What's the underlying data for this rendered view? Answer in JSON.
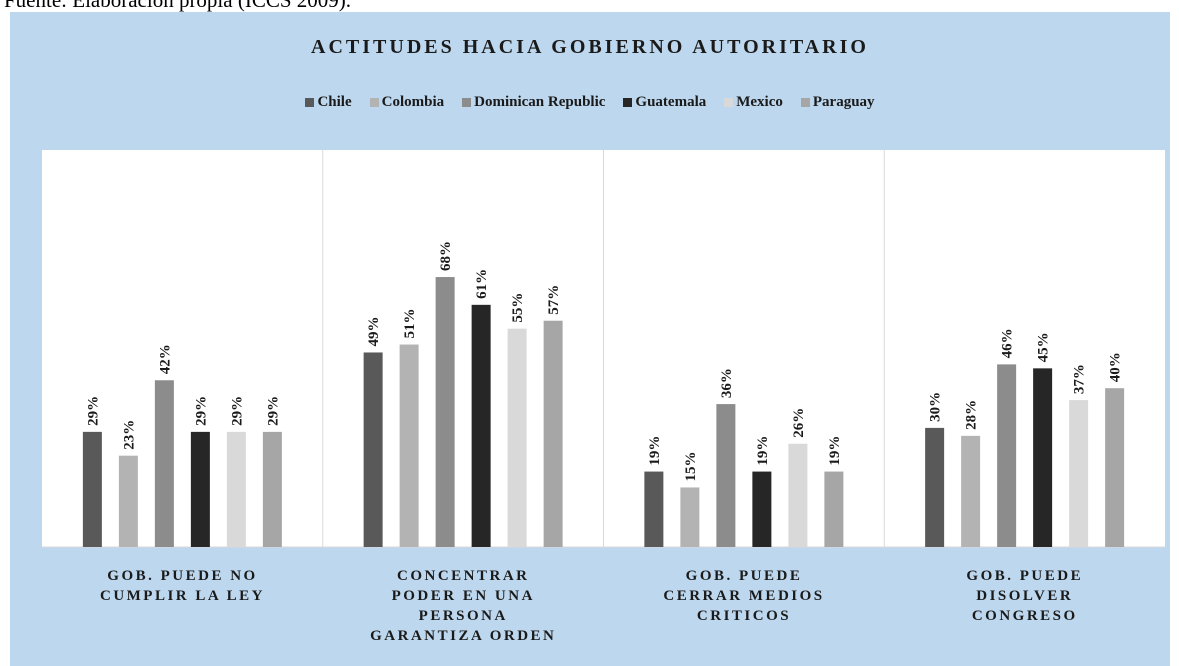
{
  "caption": "Fuente: Elaboración propia (ICCS 2009).",
  "chart_data": {
    "type": "bar",
    "title": "ACTITUDES HACIA GOBIERNO AUTORITARIO",
    "categories": [
      "GOB. PUEDE NO\nCUMPLIR LA LEY",
      "CONCENTRAR\nPODER EN UNA\nPERSONA\nGARANTIZA ORDEN",
      "GOB. PUEDE\nCERRAR MEDIOS\nCRITICOS",
      "GOB. PUEDE\nDISOLVER\nCONGRESO"
    ],
    "series": [
      {
        "name": "Chile",
        "color": "#595959",
        "values": [
          29,
          49,
          19,
          30
        ],
        "value_labels": [
          "29%",
          "49%",
          "19%",
          "30%"
        ]
      },
      {
        "name": "Colombia",
        "color": "#b3b3b3",
        "values": [
          23,
          51,
          15,
          28
        ],
        "value_labels": [
          "23%",
          "51%",
          "15%",
          "28%"
        ]
      },
      {
        "name": "Dominican Republic",
        "color": "#8c8c8c",
        "values": [
          42,
          68,
          36,
          46
        ],
        "value_labels": [
          "42%",
          "68%",
          "36%",
          "46%"
        ]
      },
      {
        "name": "Guatemala",
        "color": "#262626",
        "values": [
          29,
          61,
          19,
          45
        ],
        "value_labels": [
          "29%",
          "61%",
          "19%",
          "45%"
        ]
      },
      {
        "name": "Mexico",
        "color": "#d9d9d9",
        "values": [
          29,
          55,
          26,
          37
        ],
        "value_labels": [
          "29%",
          "55%",
          "26%",
          "37%"
        ]
      },
      {
        "name": "Paraguay",
        "color": "#a6a6a6",
        "values": [
          29,
          57,
          19,
          40
        ],
        "value_labels": [
          "29%",
          "57%",
          "19%",
          "40%"
        ]
      }
    ],
    "ylim": [
      0,
      100
    ],
    "legend": "top"
  }
}
